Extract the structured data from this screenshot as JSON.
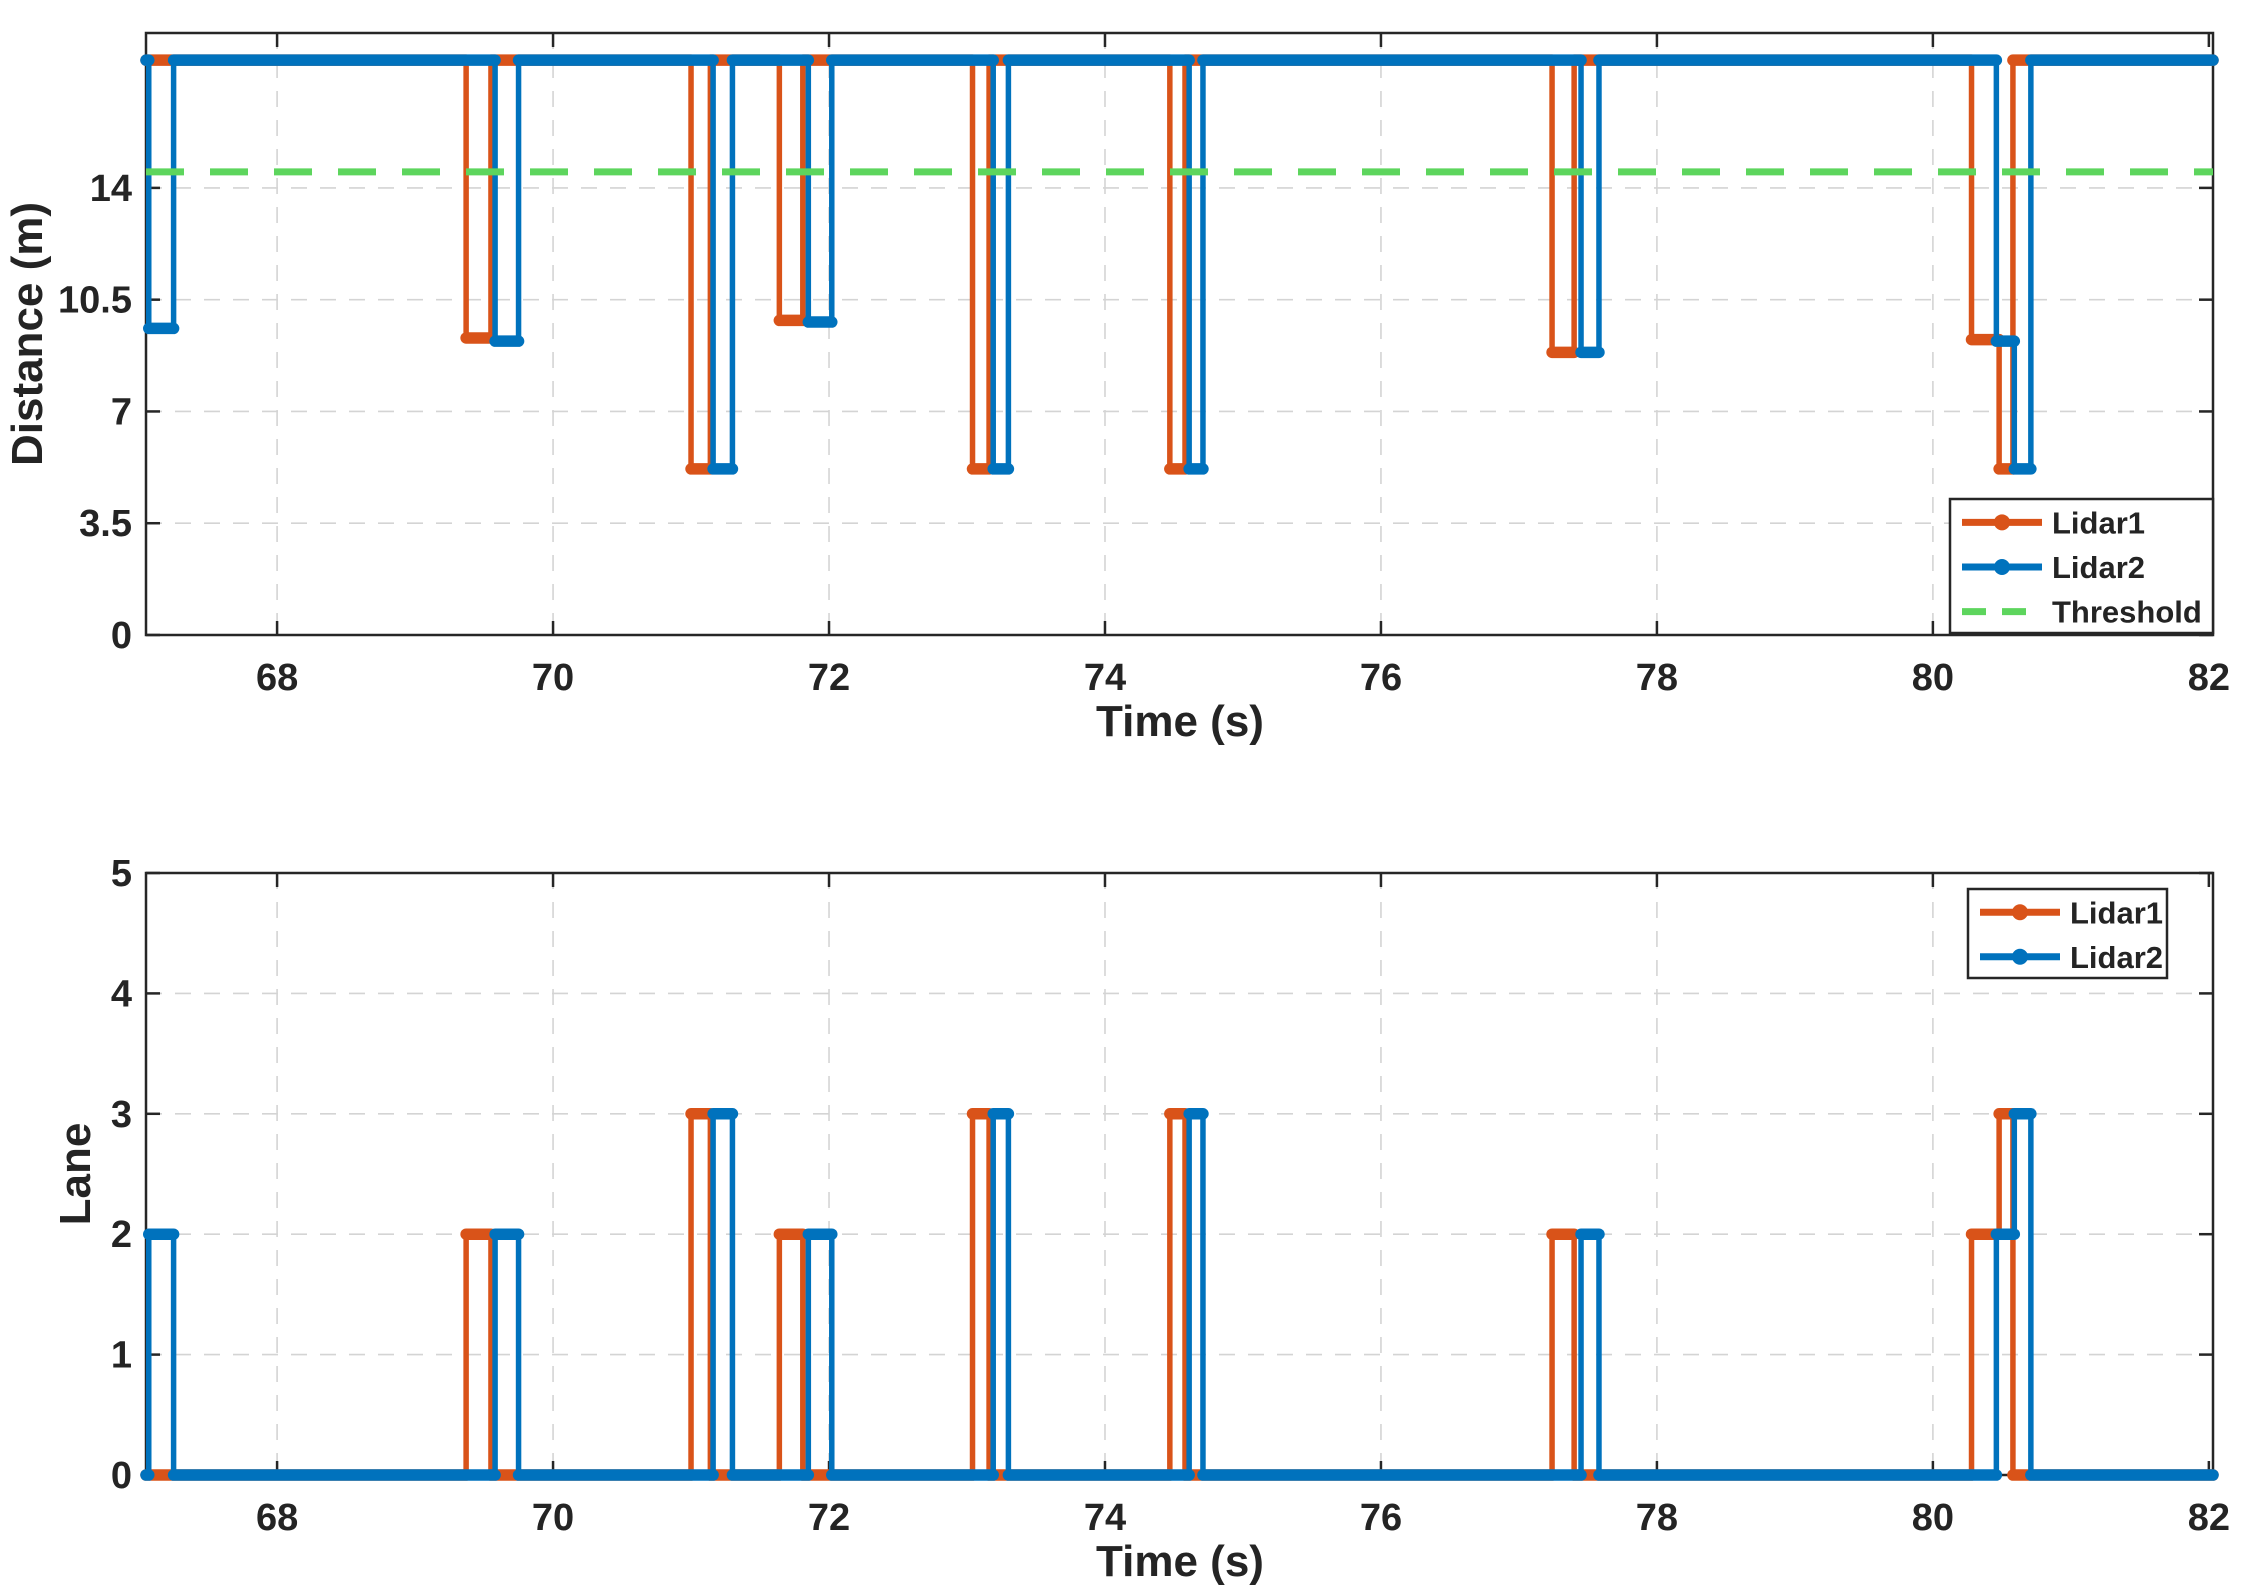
{
  "figure": {
    "background": "#ffffff"
  },
  "colors": {
    "lidar1": "#D95319",
    "lidar2": "#0072BD",
    "threshold": "#5DD55D",
    "grid": "#D4D4D4",
    "axis": "#262626",
    "text": "#242424"
  },
  "chart_data": [
    {
      "type": "line",
      "title": "",
      "xlabel": "Time (s)",
      "ylabel": "Distance (m)",
      "xlim": [
        67.05,
        82.03
      ],
      "ylim": [
        0,
        18.85
      ],
      "xticks": [
        68,
        70,
        72,
        74,
        76,
        78,
        80,
        82
      ],
      "yticks": [
        0,
        3.5,
        7,
        10.5,
        14
      ],
      "grid": true,
      "legend_position": "bottom-right",
      "baseline_value": 18,
      "series": [
        {
          "name": "Lidar1",
          "color_key": "lidar1",
          "baseline": 18,
          "pulses": [
            {
              "t0": 69.37,
              "t1": 69.55,
              "v": 9.3
            },
            {
              "t0": 71.0,
              "t1": 71.14,
              "v": 5.2
            },
            {
              "t0": 71.64,
              "t1": 71.81,
              "v": 9.85
            },
            {
              "t0": 73.04,
              "t1": 73.16,
              "v": 5.2
            },
            {
              "t0": 74.47,
              "t1": 74.58,
              "v": 5.2
            },
            {
              "t0": 77.24,
              "t1": 77.4,
              "v": 8.85
            },
            {
              "t0": 80.28,
              "t1": 80.48,
              "v": 9.25
            },
            {
              "t0": 80.48,
              "t1": 80.58,
              "v": 5.2
            }
          ]
        },
        {
          "name": "Lidar2",
          "color_key": "lidar2",
          "baseline": 18,
          "pulses": [
            {
              "t0": 67.07,
              "t1": 67.25,
              "v": 9.6
            },
            {
              "t0": 69.58,
              "t1": 69.75,
              "v": 9.2
            },
            {
              "t0": 71.16,
              "t1": 71.3,
              "v": 5.2
            },
            {
              "t0": 71.85,
              "t1": 72.02,
              "v": 9.8
            },
            {
              "t0": 73.19,
              "t1": 73.3,
              "v": 5.2
            },
            {
              "t0": 74.61,
              "t1": 74.71,
              "v": 5.2
            },
            {
              "t0": 77.45,
              "t1": 77.58,
              "v": 8.85
            },
            {
              "t0": 80.46,
              "t1": 80.59,
              "v": 9.2
            },
            {
              "t0": 80.59,
              "t1": 80.71,
              "v": 5.2
            }
          ]
        }
      ],
      "threshold": {
        "name": "Threshold",
        "value": 14.5,
        "color_key": "threshold"
      }
    },
    {
      "type": "line",
      "title": "",
      "xlabel": "Time (s)",
      "ylabel": "Lane",
      "xlim": [
        67.05,
        82.03
      ],
      "ylim": [
        0,
        5
      ],
      "xticks": [
        68,
        70,
        72,
        74,
        76,
        78,
        80,
        82
      ],
      "yticks": [
        0,
        1,
        2,
        3,
        4,
        5
      ],
      "grid": true,
      "legend_position": "top-right",
      "baseline_value": 0,
      "series": [
        {
          "name": "Lidar1",
          "color_key": "lidar1",
          "baseline": 0,
          "pulses": [
            {
              "t0": 69.37,
              "t1": 69.55,
              "v": 2
            },
            {
              "t0": 71.0,
              "t1": 71.14,
              "v": 3
            },
            {
              "t0": 71.64,
              "t1": 71.81,
              "v": 2
            },
            {
              "t0": 73.04,
              "t1": 73.16,
              "v": 3
            },
            {
              "t0": 74.47,
              "t1": 74.58,
              "v": 3
            },
            {
              "t0": 77.24,
              "t1": 77.4,
              "v": 2
            },
            {
              "t0": 80.28,
              "t1": 80.48,
              "v": 2
            },
            {
              "t0": 80.48,
              "t1": 80.58,
              "v": 3
            }
          ]
        },
        {
          "name": "Lidar2",
          "color_key": "lidar2",
          "baseline": 0,
          "pulses": [
            {
              "t0": 67.07,
              "t1": 67.25,
              "v": 2
            },
            {
              "t0": 69.58,
              "t1": 69.75,
              "v": 2
            },
            {
              "t0": 71.16,
              "t1": 71.3,
              "v": 3
            },
            {
              "t0": 71.85,
              "t1": 72.02,
              "v": 2
            },
            {
              "t0": 73.19,
              "t1": 73.3,
              "v": 3
            },
            {
              "t0": 74.61,
              "t1": 74.71,
              "v": 3
            },
            {
              "t0": 77.45,
              "t1": 77.58,
              "v": 2
            },
            {
              "t0": 80.46,
              "t1": 80.59,
              "v": 2
            },
            {
              "t0": 80.59,
              "t1": 80.71,
              "v": 3
            }
          ]
        }
      ]
    }
  ]
}
